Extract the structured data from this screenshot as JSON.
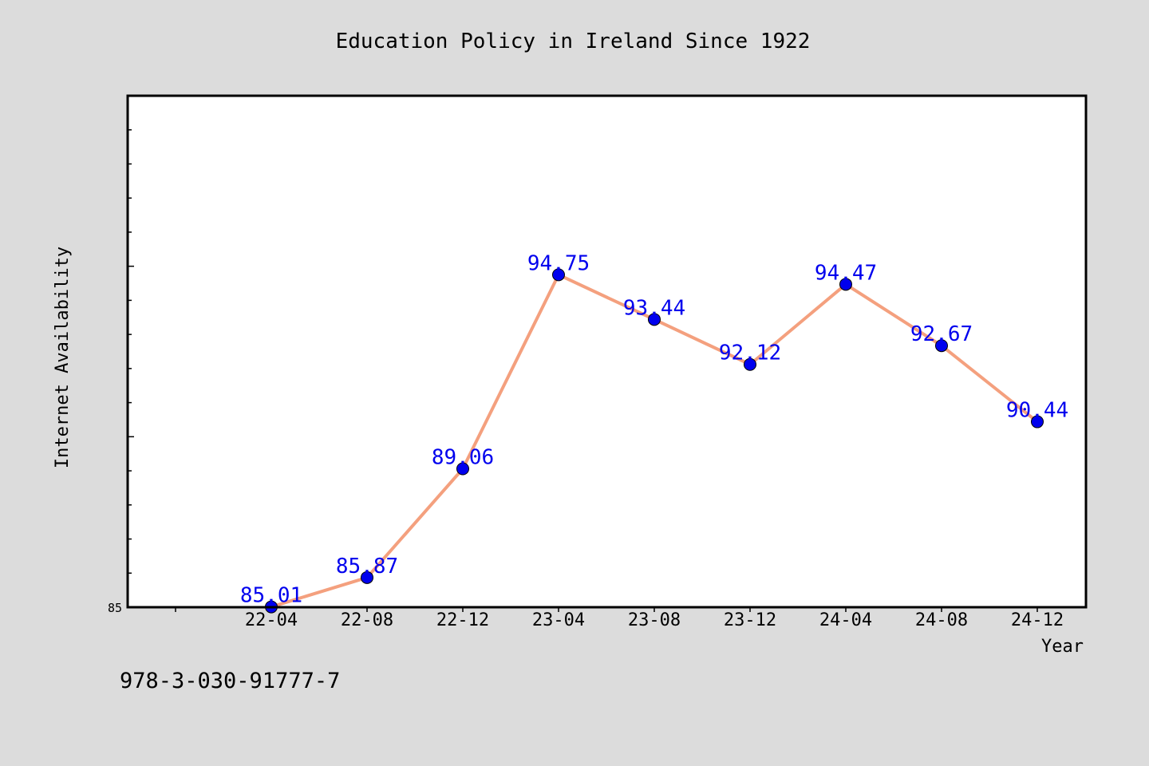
{
  "figure": {
    "background": "#dcdcdc",
    "isbn_label": "978-3-030-91777-7"
  },
  "chart_data": {
    "type": "line",
    "title": "Education Policy in Ireland Since 1922",
    "xlabel": "Year",
    "ylabel": "Internet Availability",
    "categories": [
      "22-04",
      "22-08",
      "22-12",
      "23-04",
      "23-08",
      "23-12",
      "24-04",
      "24-08",
      "24-12"
    ],
    "series": [
      {
        "values": [
          85.01,
          85.87,
          89.06,
          94.75,
          93.44,
          92.12,
          94.47,
          92.67,
          90.44
        ],
        "line_color": "#f4a07e",
        "marker_color": "#0000ee",
        "label_color": "#0000ee"
      }
    ],
    "ylim": [
      85,
      100
    ],
    "y_tick_labels": [
      {
        "value": 85,
        "label": "85"
      }
    ],
    "grid": false,
    "legend": "none"
  }
}
